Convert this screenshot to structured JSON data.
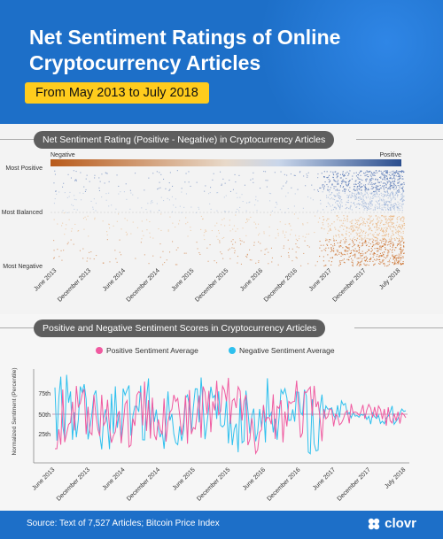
{
  "header": {
    "title": "Net Sentiment Ratings of Online Cryptocurrency Articles",
    "date_range": "From May 2013 to July 2018"
  },
  "footer": {
    "source": "Source: Text of 7,527 Articles; Bitcoin Price Index",
    "brand": "clovr"
  },
  "colors": {
    "header_blue": "#1d6fc8",
    "pill_yellow": "#ffcc1d",
    "negative_orange": "#e07a1f",
    "positive_blue": "#2f5fa8",
    "pink_series": "#f05aa0",
    "cyan_series": "#2ec0ee"
  },
  "chart_data": [
    {
      "type": "scatter",
      "title": "Net Sentiment Rating (Positive - Negative) in Cryptocurrency Articles",
      "color_scale": {
        "left": "Negative",
        "right": "Positive"
      },
      "y_categories": [
        "Most Positive",
        "Most Balanced",
        "Most Negative"
      ],
      "x_ticks": [
        "June 2013",
        "December 2013",
        "June 2014",
        "December 2014",
        "June 2015",
        "December 2015",
        "June 2016",
        "December 2016",
        "June 2017",
        "December 2017",
        "July 2018"
      ],
      "x_range": [
        "2013-05",
        "2018-07"
      ],
      "y_range": [
        -1,
        1
      ],
      "note": "7,527 articles; density increases strongly after mid-2017"
    },
    {
      "type": "line",
      "title": "Positive and Negative Sentiment Scores in Cryptocurrency Articles",
      "ylabel": "Normalized Sentiment (Percentile)",
      "y_ticks": [
        "25th",
        "50th",
        "75th"
      ],
      "y_range": [
        0,
        100
      ],
      "x_ticks": [
        "June 2013",
        "December 2013",
        "June 2014",
        "December 2014",
        "June 2015",
        "December 2015",
        "June 2016",
        "December 2016",
        "June 2017",
        "December 2017",
        "July 2018"
      ],
      "series": [
        {
          "name": "Positive Sentiment Average",
          "color": "#f05aa0"
        },
        {
          "name": "Negative Sentiment Average",
          "color": "#2ec0ee"
        }
      ],
      "reference_line": 50
    }
  ]
}
